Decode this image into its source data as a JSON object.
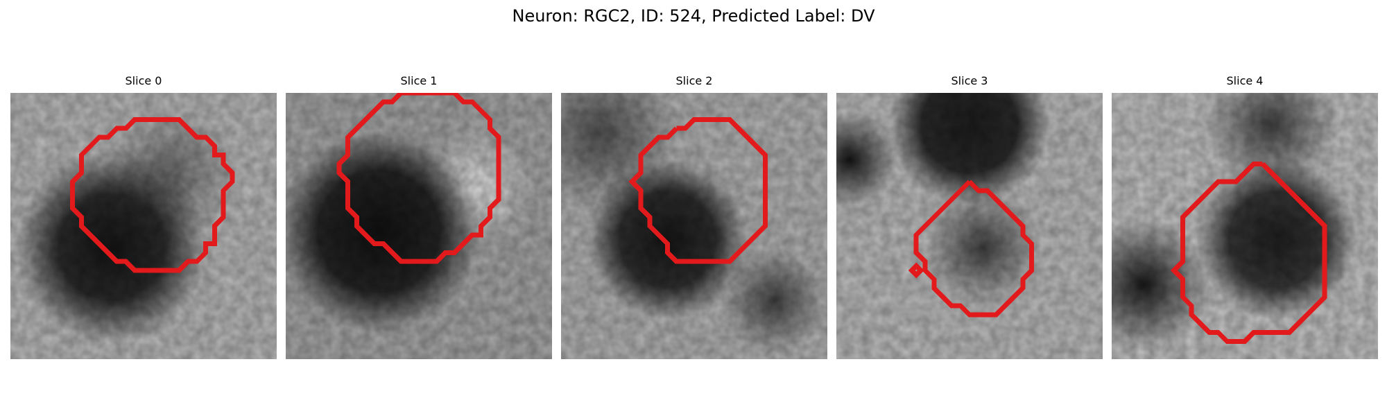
{
  "figure": {
    "title": "Neuron: RGC2, ID: 524, Predicted Label: DV",
    "contour_color": "#e31a1c"
  },
  "slices": [
    {
      "title": "Slice 0"
    },
    {
      "title": "Slice 1"
    },
    {
      "title": "Slice 2"
    },
    {
      "title": "Slice 3"
    },
    {
      "title": "Slice 4"
    }
  ]
}
